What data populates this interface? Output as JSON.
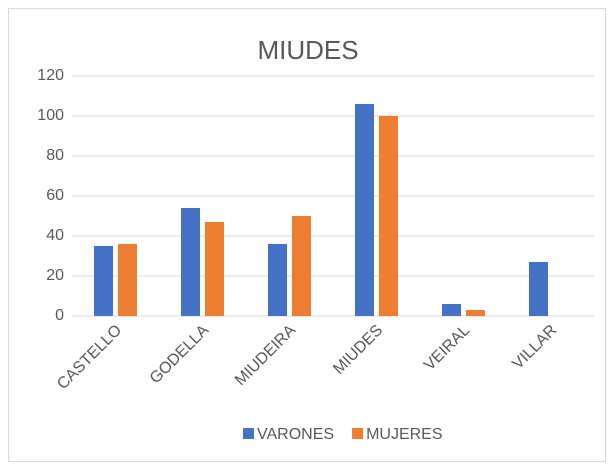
{
  "chart_data": {
    "type": "bar",
    "title": "MIUDES",
    "categories": [
      "CASTELLO",
      "GODELLA",
      "MIUDEIRA",
      "MIUDES",
      "VEIRAL",
      "VILLAR"
    ],
    "series": [
      {
        "name": "VARONES",
        "color": "#4472c4",
        "values": [
          35,
          54,
          36,
          106,
          6,
          27
        ]
      },
      {
        "name": "MUJERES",
        "color": "#ed7d31",
        "values": [
          36,
          47,
          50,
          100,
          3,
          0
        ]
      }
    ],
    "ylim": [
      0,
      120
    ],
    "yticks": [
      0,
      20,
      40,
      60,
      80,
      100,
      120
    ],
    "grid": true,
    "legend": "bottom"
  }
}
